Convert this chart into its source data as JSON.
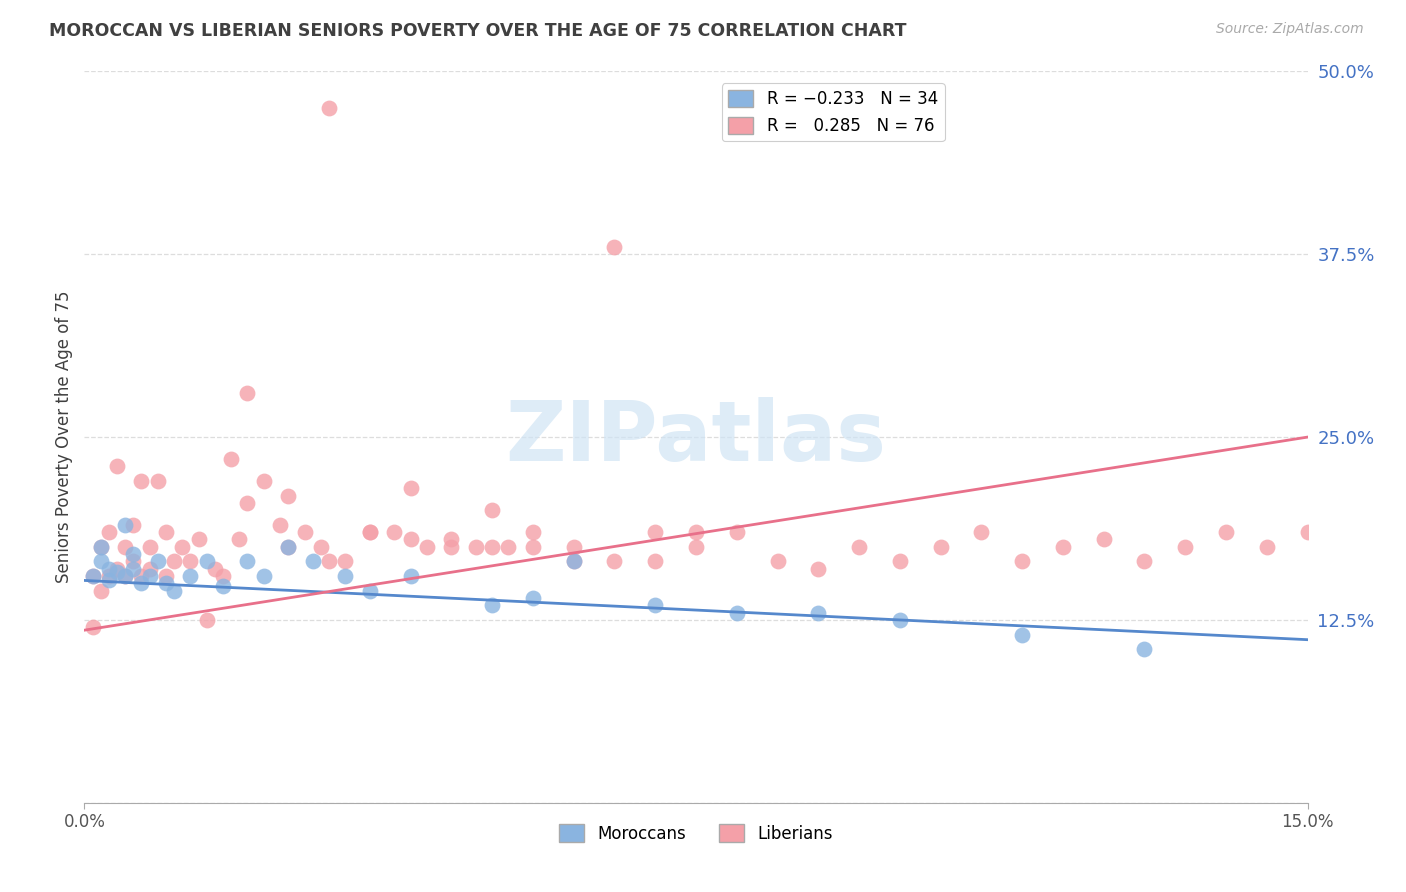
{
  "title": "MOROCCAN VS LIBERIAN SENIORS POVERTY OVER THE AGE OF 75 CORRELATION CHART",
  "source": "Source: ZipAtlas.com",
  "ylabel": "Seniors Poverty Over the Age of 75",
  "xmin": 0.0,
  "xmax": 0.15,
  "ymin": 0.0,
  "ymax": 0.5,
  "yticks": [
    0.0,
    0.125,
    0.25,
    0.375,
    0.5
  ],
  "ytick_labels": [
    "",
    "12.5%",
    "25.0%",
    "37.5%",
    "50.0%"
  ],
  "moroccan_color": "#8ab4e0",
  "liberian_color": "#f4a0a8",
  "moroccan_line_color": "#5588cc",
  "liberian_line_color": "#e8708a",
  "watermark_color": "#d0e4f4",
  "background_color": "#ffffff",
  "tick_label_color": "#4472c4",
  "title_color": "#404040",
  "source_color": "#aaaaaa",
  "moroccan_N": 34,
  "liberian_N": 76,
  "mor_intercept": 0.152,
  "mor_slope": -0.27,
  "lib_intercept": 0.118,
  "lib_slope": 0.88,
  "moroccan_x": [
    0.001,
    0.002,
    0.002,
    0.003,
    0.003,
    0.004,
    0.005,
    0.005,
    0.006,
    0.006,
    0.007,
    0.008,
    0.009,
    0.01,
    0.011,
    0.013,
    0.015,
    0.017,
    0.02,
    0.022,
    0.025,
    0.028,
    0.032,
    0.035,
    0.04,
    0.05,
    0.055,
    0.06,
    0.07,
    0.08,
    0.09,
    0.1,
    0.115,
    0.13
  ],
  "moroccan_y": [
    0.155,
    0.165,
    0.175,
    0.16,
    0.152,
    0.158,
    0.19,
    0.155,
    0.16,
    0.17,
    0.15,
    0.155,
    0.165,
    0.15,
    0.145,
    0.155,
    0.165,
    0.148,
    0.165,
    0.155,
    0.175,
    0.165,
    0.155,
    0.145,
    0.155,
    0.135,
    0.14,
    0.165,
    0.135,
    0.13,
    0.13,
    0.125,
    0.115,
    0.105
  ],
  "liberian_x": [
    0.001,
    0.001,
    0.002,
    0.002,
    0.003,
    0.003,
    0.004,
    0.004,
    0.005,
    0.005,
    0.006,
    0.006,
    0.007,
    0.007,
    0.008,
    0.008,
    0.009,
    0.01,
    0.01,
    0.011,
    0.012,
    0.013,
    0.014,
    0.015,
    0.016,
    0.017,
    0.018,
    0.019,
    0.02,
    0.022,
    0.024,
    0.025,
    0.027,
    0.029,
    0.03,
    0.032,
    0.035,
    0.038,
    0.04,
    0.042,
    0.045,
    0.048,
    0.05,
    0.052,
    0.055,
    0.06,
    0.065,
    0.07,
    0.075,
    0.08,
    0.085,
    0.09,
    0.095,
    0.1,
    0.105,
    0.11,
    0.115,
    0.12,
    0.125,
    0.13,
    0.135,
    0.14,
    0.145,
    0.15,
    0.02,
    0.025,
    0.03,
    0.035,
    0.04,
    0.045,
    0.05,
    0.055,
    0.06,
    0.065,
    0.07,
    0.075
  ],
  "liberian_y": [
    0.12,
    0.155,
    0.145,
    0.175,
    0.155,
    0.185,
    0.16,
    0.23,
    0.155,
    0.175,
    0.19,
    0.165,
    0.22,
    0.155,
    0.175,
    0.16,
    0.22,
    0.155,
    0.185,
    0.165,
    0.175,
    0.165,
    0.18,
    0.125,
    0.16,
    0.155,
    0.235,
    0.18,
    0.205,
    0.22,
    0.19,
    0.21,
    0.185,
    0.175,
    0.475,
    0.165,
    0.185,
    0.185,
    0.215,
    0.175,
    0.18,
    0.175,
    0.2,
    0.175,
    0.175,
    0.165,
    0.38,
    0.185,
    0.175,
    0.185,
    0.165,
    0.16,
    0.175,
    0.165,
    0.175,
    0.185,
    0.165,
    0.175,
    0.18,
    0.165,
    0.175,
    0.185,
    0.175,
    0.185,
    0.28,
    0.175,
    0.165,
    0.185,
    0.18,
    0.175,
    0.175,
    0.185,
    0.175,
    0.165,
    0.165,
    0.185
  ]
}
